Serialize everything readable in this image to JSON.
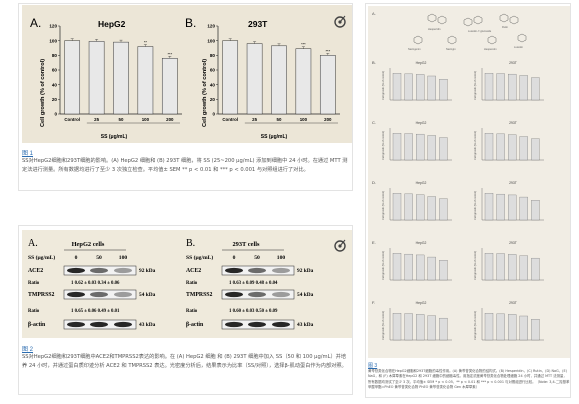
{
  "fig1": {
    "link": "图 1",
    "caption": "SS对HepG2细胞和293T细胞的影响。(A) HepG2 细胞和 (B) 293T 细胞，将 SS (25~200 μg/mL) 添加到细胞中 24 小时。在通过 MTT 测定法进行测量。所有数据均进行了至少 3 次独立检查。平均值± SEM ** p < 0.01 和 *** p < 0.001 与对照组进行了对比。",
    "ylabel": "Cell growth (% of control)",
    "xlabel": "SS (μg/mL)",
    "panels": [
      {
        "letter": "A.",
        "title": "HepG2"
      },
      {
        "letter": "B.",
        "title": "293T"
      }
    ]
  },
  "fig2": {
    "link": "图 2",
    "caption": "SS对HepG2细胞和293T细胞中ACE2和TMPRSS2表达的影响。在 (A) HepG2 细胞 和 (B) 293T 细胞中加入 SS（50 和 100 μg/mL）并培养 24 小时，并通过蛋白质印迹分析 ACE2 和 TMPRSS2 表达。光密度分析后，结果表示为比率（SS/对照），选择β-肌动蛋白作为内部对照。",
    "panels": [
      {
        "letter": "A.",
        "title": "HepG2 cells",
        "ratio_ace2": "1   0.62 ± 0.03  0.34 ± 0.06",
        "ratio_tmp": "1   0.65 ± 0.06  0.49 ± 0.01"
      },
      {
        "letter": "B.",
        "title": "293T cells",
        "ratio_ace2": "1   0.63 ± 0.09  0.48 ± 0.04",
        "ratio_tmp": "1   0.60 ± 0.03  0.50 ± 0.09"
      }
    ],
    "ss_label": "SS (μg/mL)",
    "conc": [
      "0",
      "50",
      "100"
    ],
    "rows": [
      "ACE2",
      "Ratio",
      "TMPRSS2",
      "Ratio",
      "β-actin"
    ],
    "kda": [
      "92 kDa",
      "54 kDa",
      "43 kDa"
    ]
  },
  "fig3": {
    "link": "图 3",
    "caption": "黄芩苷类化合物在HepG2细胞和293T细胞的毒性作用。(A) 黄芩苷类化合物的结构式。(B) Hesperidin，(C) Rutin，(D) NaG，(E) NaG，和 (F) 木犀草素在HepG2 和 293T 细胞中的细胞毒性。用指定浓度黄芩苷类化合物处理细胞 24 小时，并通过 MTT 法测量，所有数据均测试了至少 3 次。平均值± SEM * p < 0.05，** p < 0.01 和 *** p < 0.001 与对照组进行比较。（Note: 3,4-二羟基苯甲酸甲酯=PhEO 黄芩苷类化合物 PhEO 黄芩苷类化合物 Gen 木犀草素）",
    "rows": [
      "B.",
      "C.",
      "D.",
      "E.",
      "F."
    ],
    "cells": [
      "HepG2",
      "293T"
    ],
    "ylabel": "Cell growth (% of control)"
  },
  "chart_data": [
    {
      "type": "bar",
      "title": "HepG2",
      "categories": [
        "Control",
        "25",
        "50",
        "100",
        "200"
      ],
      "values": [
        100,
        99,
        98,
        92,
        76
      ],
      "ylim": [
        0,
        120
      ],
      "xlabel": "SS (μg/mL)",
      "ylabel": "Cell growth (% of control)",
      "annotations": [
        "",
        "",
        "",
        "**",
        "***"
      ]
    },
    {
      "type": "bar",
      "title": "293T",
      "categories": [
        "Control",
        "25",
        "50",
        "100",
        "200"
      ],
      "values": [
        100,
        96,
        93,
        89,
        80
      ],
      "ylim": [
        0,
        120
      ],
      "xlabel": "SS (μg/mL)",
      "ylabel": "Cell growth (% of control)",
      "annotations": [
        "",
        "",
        "",
        "***",
        "***"
      ]
    }
  ]
}
